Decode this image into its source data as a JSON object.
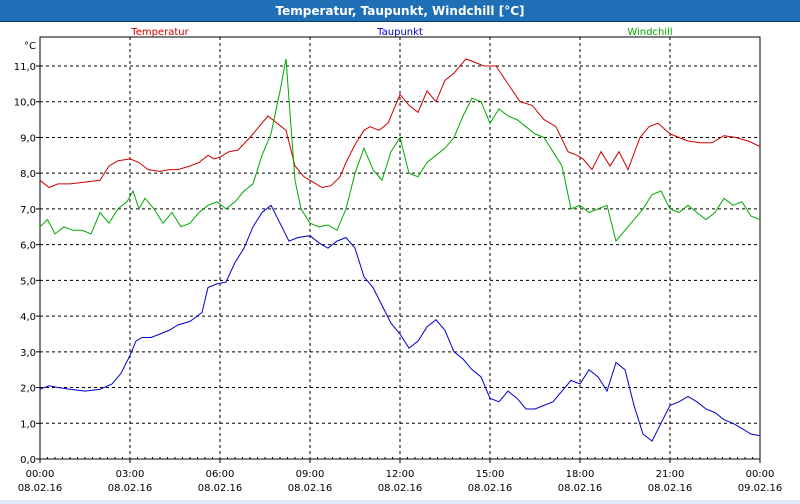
{
  "window": {
    "title": "Temperatur, Taupunkt, Windchill [°C]"
  },
  "colors": {
    "titlebar": "#1f6fb6",
    "grid": "#000000",
    "temperature": "#cc0000",
    "dewpoint": "#0000cc",
    "windchill": "#00aa00"
  },
  "chart_data": {
    "type": "line",
    "title": "Temperatur, Taupunkt, Windchill [°C]",
    "ylabel": "°C",
    "ylim": [
      0,
      11.0
    ],
    "yticks": [
      "0,0",
      "1,0",
      "2,0",
      "3,0",
      "4,0",
      "5,0",
      "6,0",
      "7,0",
      "8,0",
      "9,0",
      "10,0",
      "11,0"
    ],
    "x_hours": [
      0,
      3,
      6,
      9,
      12,
      15,
      18,
      21,
      24
    ],
    "x_tick_times": [
      "00:00",
      "03:00",
      "06:00",
      "09:00",
      "12:00",
      "15:00",
      "18:00",
      "21:00",
      "00:00"
    ],
    "x_tick_dates": [
      "08.02.16",
      "08.02.16",
      "08.02.16",
      "08.02.16",
      "08.02.16",
      "08.02.16",
      "08.02.16",
      "08.02.16",
      "09.02.16"
    ],
    "grid": true,
    "legend_placement": "top",
    "series": [
      {
        "name": "Temperatur",
        "color": "#cc0000",
        "points": [
          [
            0,
            7.8
          ],
          [
            0.3,
            7.6
          ],
          [
            0.6,
            7.7
          ],
          [
            1,
            7.7
          ],
          [
            1.5,
            7.75
          ],
          [
            2,
            7.8
          ],
          [
            2.3,
            8.2
          ],
          [
            2.6,
            8.35
          ],
          [
            3,
            8.4
          ],
          [
            3.3,
            8.3
          ],
          [
            3.6,
            8.1
          ],
          [
            4,
            8.05
          ],
          [
            4.3,
            8.1
          ],
          [
            4.6,
            8.1
          ],
          [
            5,
            8.2
          ],
          [
            5.3,
            8.3
          ],
          [
            5.6,
            8.5
          ],
          [
            5.8,
            8.4
          ],
          [
            6,
            8.45
          ],
          [
            6.3,
            8.6
          ],
          [
            6.6,
            8.65
          ],
          [
            7,
            9.0
          ],
          [
            7.3,
            9.3
          ],
          [
            7.6,
            9.6
          ],
          [
            7.9,
            9.4
          ],
          [
            8.2,
            9.2
          ],
          [
            8.5,
            8.2
          ],
          [
            8.8,
            7.9
          ],
          [
            9.1,
            7.75
          ],
          [
            9.4,
            7.6
          ],
          [
            9.7,
            7.65
          ],
          [
            10,
            7.9
          ],
          [
            10.2,
            8.3
          ],
          [
            10.5,
            8.8
          ],
          [
            10.8,
            9.2
          ],
          [
            11,
            9.3
          ],
          [
            11.3,
            9.2
          ],
          [
            11.6,
            9.4
          ],
          [
            12,
            10.2
          ],
          [
            12.3,
            9.9
          ],
          [
            12.6,
            9.7
          ],
          [
            12.9,
            10.3
          ],
          [
            13.2,
            10.0
          ],
          [
            13.5,
            10.6
          ],
          [
            13.8,
            10.8
          ],
          [
            14.2,
            11.2
          ],
          [
            14.5,
            11.1
          ],
          [
            14.8,
            11.0
          ],
          [
            15.2,
            11.0
          ],
          [
            15.6,
            10.5
          ],
          [
            16,
            10.0
          ],
          [
            16.4,
            9.9
          ],
          [
            16.8,
            9.5
          ],
          [
            17.2,
            9.3
          ],
          [
            17.6,
            8.6
          ],
          [
            17.9,
            8.5
          ],
          [
            18.1,
            8.4
          ],
          [
            18.4,
            8.1
          ],
          [
            18.7,
            8.6
          ],
          [
            19,
            8.2
          ],
          [
            19.3,
            8.6
          ],
          [
            19.6,
            8.1
          ],
          [
            20,
            9.0
          ],
          [
            20.3,
            9.3
          ],
          [
            20.6,
            9.4
          ],
          [
            21,
            9.1
          ],
          [
            21.3,
            9.0
          ],
          [
            21.6,
            8.9
          ],
          [
            22,
            8.85
          ],
          [
            22.4,
            8.85
          ],
          [
            22.8,
            9.05
          ],
          [
            23.2,
            9.0
          ],
          [
            23.6,
            8.9
          ],
          [
            24,
            8.75
          ]
        ]
      },
      {
        "name": "Taupunkt",
        "color": "#0000cc",
        "points": [
          [
            0,
            1.95
          ],
          [
            0.3,
            2.05
          ],
          [
            0.6,
            2.0
          ],
          [
            1,
            1.95
          ],
          [
            1.5,
            1.9
          ],
          [
            2,
            1.95
          ],
          [
            2.4,
            2.1
          ],
          [
            2.7,
            2.4
          ],
          [
            3,
            2.9
          ],
          [
            3.2,
            3.3
          ],
          [
            3.4,
            3.4
          ],
          [
            3.7,
            3.4
          ],
          [
            4,
            3.5
          ],
          [
            4.3,
            3.6
          ],
          [
            4.6,
            3.75
          ],
          [
            5,
            3.85
          ],
          [
            5.4,
            4.1
          ],
          [
            5.6,
            4.8
          ],
          [
            5.9,
            4.9
          ],
          [
            6.2,
            4.95
          ],
          [
            6.5,
            5.5
          ],
          [
            6.8,
            5.9
          ],
          [
            7.1,
            6.5
          ],
          [
            7.4,
            6.9
          ],
          [
            7.7,
            7.1
          ],
          [
            8,
            6.6
          ],
          [
            8.3,
            6.1
          ],
          [
            8.6,
            6.2
          ],
          [
            9,
            6.25
          ],
          [
            9.3,
            6.05
          ],
          [
            9.6,
            5.9
          ],
          [
            9.9,
            6.1
          ],
          [
            10.2,
            6.2
          ],
          [
            10.5,
            5.9
          ],
          [
            10.8,
            5.1
          ],
          [
            11.1,
            4.8
          ],
          [
            11.4,
            4.3
          ],
          [
            11.7,
            3.8
          ],
          [
            12,
            3.5
          ],
          [
            12.3,
            3.1
          ],
          [
            12.6,
            3.3
          ],
          [
            12.9,
            3.7
          ],
          [
            13.2,
            3.9
          ],
          [
            13.5,
            3.6
          ],
          [
            13.8,
            3.0
          ],
          [
            14.1,
            2.8
          ],
          [
            14.4,
            2.5
          ],
          [
            14.7,
            2.3
          ],
          [
            15,
            1.7
          ],
          [
            15.3,
            1.6
          ],
          [
            15.6,
            1.9
          ],
          [
            15.9,
            1.7
          ],
          [
            16.2,
            1.4
          ],
          [
            16.5,
            1.4
          ],
          [
            16.8,
            1.5
          ],
          [
            17.1,
            1.6
          ],
          [
            17.4,
            1.9
          ],
          [
            17.7,
            2.2
          ],
          [
            18,
            2.1
          ],
          [
            18.3,
            2.5
          ],
          [
            18.6,
            2.3
          ],
          [
            18.9,
            1.9
          ],
          [
            19.2,
            2.7
          ],
          [
            19.5,
            2.5
          ],
          [
            19.8,
            1.5
          ],
          [
            20.1,
            0.7
          ],
          [
            20.4,
            0.5
          ],
          [
            20.7,
            1.0
          ],
          [
            21,
            1.5
          ],
          [
            21.3,
            1.6
          ],
          [
            21.6,
            1.75
          ],
          [
            21.9,
            1.6
          ],
          [
            22.2,
            1.4
          ],
          [
            22.5,
            1.3
          ],
          [
            22.8,
            1.1
          ],
          [
            23.1,
            1.0
          ],
          [
            23.4,
            0.85
          ],
          [
            23.7,
            0.7
          ],
          [
            24,
            0.65
          ]
        ]
      },
      {
        "name": "Windchill",
        "color": "#00aa00",
        "points": [
          [
            0,
            6.5
          ],
          [
            0.25,
            6.7
          ],
          [
            0.5,
            6.3
          ],
          [
            0.8,
            6.5
          ],
          [
            1.1,
            6.4
          ],
          [
            1.4,
            6.4
          ],
          [
            1.7,
            6.3
          ],
          [
            2,
            6.9
          ],
          [
            2.3,
            6.6
          ],
          [
            2.6,
            7.0
          ],
          [
            2.9,
            7.2
          ],
          [
            3.1,
            7.5
          ],
          [
            3.3,
            7.0
          ],
          [
            3.5,
            7.3
          ],
          [
            3.8,
            7.0
          ],
          [
            4.1,
            6.6
          ],
          [
            4.4,
            6.9
          ],
          [
            4.7,
            6.5
          ],
          [
            5,
            6.6
          ],
          [
            5.3,
            6.9
          ],
          [
            5.6,
            7.1
          ],
          [
            5.9,
            7.2
          ],
          [
            6.2,
            7.0
          ],
          [
            6.5,
            7.2
          ],
          [
            6.8,
            7.5
          ],
          [
            7.1,
            7.7
          ],
          [
            7.4,
            8.5
          ],
          [
            7.7,
            9.1
          ],
          [
            8,
            10.3
          ],
          [
            8.2,
            11.2
          ],
          [
            8.5,
            7.8
          ],
          [
            8.7,
            7.0
          ],
          [
            9,
            6.6
          ],
          [
            9.3,
            6.5
          ],
          [
            9.6,
            6.55
          ],
          [
            9.9,
            6.4
          ],
          [
            10.2,
            7.0
          ],
          [
            10.5,
            8.0
          ],
          [
            10.8,
            8.7
          ],
          [
            11.1,
            8.1
          ],
          [
            11.4,
            7.8
          ],
          [
            11.7,
            8.6
          ],
          [
            12,
            9.0
          ],
          [
            12.3,
            8.0
          ],
          [
            12.6,
            7.9
          ],
          [
            12.9,
            8.3
          ],
          [
            13.2,
            8.5
          ],
          [
            13.5,
            8.7
          ],
          [
            13.8,
            9.0
          ],
          [
            14.1,
            9.6
          ],
          [
            14.4,
            10.1
          ],
          [
            14.7,
            10.0
          ],
          [
            15,
            9.4
          ],
          [
            15.3,
            9.8
          ],
          [
            15.6,
            9.6
          ],
          [
            15.9,
            9.5
          ],
          [
            16.2,
            9.3
          ],
          [
            16.5,
            9.1
          ],
          [
            16.8,
            9.0
          ],
          [
            17.1,
            8.6
          ],
          [
            17.4,
            8.2
          ],
          [
            17.7,
            7.0
          ],
          [
            18,
            7.1
          ],
          [
            18.3,
            6.9
          ],
          [
            18.6,
            7.0
          ],
          [
            18.9,
            7.1
          ],
          [
            19.2,
            6.1
          ],
          [
            19.5,
            6.4
          ],
          [
            19.8,
            6.7
          ],
          [
            20.1,
            7.0
          ],
          [
            20.4,
            7.4
          ],
          [
            20.7,
            7.5
          ],
          [
            21,
            7.0
          ],
          [
            21.3,
            6.9
          ],
          [
            21.6,
            7.1
          ],
          [
            21.9,
            6.9
          ],
          [
            22.2,
            6.7
          ],
          [
            22.5,
            6.9
          ],
          [
            22.8,
            7.3
          ],
          [
            23.1,
            7.1
          ],
          [
            23.4,
            7.2
          ],
          [
            23.7,
            6.8
          ],
          [
            24,
            6.7
          ]
        ]
      }
    ]
  }
}
